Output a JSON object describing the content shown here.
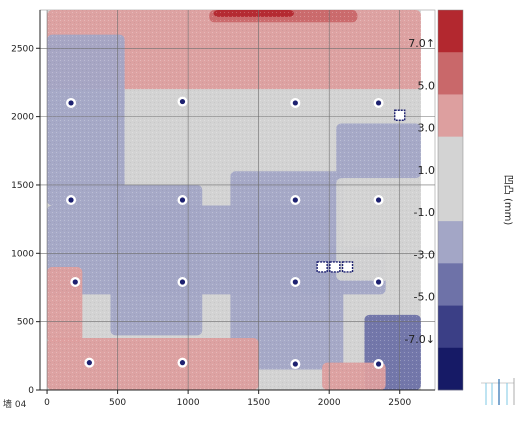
{
  "chart_data": {
    "type": "heatmap",
    "corner_label": "墙 04",
    "x_ticks": [
      "0",
      "500",
      "1000",
      "1500",
      "2000",
      "2500"
    ],
    "y_ticks": [
      "0",
      "500",
      "1000",
      "1500",
      "2000",
      "2500"
    ],
    "xlim": [
      -50,
      2750
    ],
    "ylim": [
      0,
      2780
    ],
    "x_data_extent": [
      0,
      2650
    ],
    "y_data_extent": [
      0,
      2780
    ],
    "grid": true,
    "colorbar": {
      "title": "凹凸 (mm)",
      "labels": [
        "7.0↑",
        "5.0",
        "3.0",
        "1.0",
        "-1.0",
        "-3.0",
        "-5.0",
        "-7.0↓"
      ],
      "colors": [
        "#b3282f",
        "#c9686a",
        "#dd9f9f",
        "#d3d3d3",
        "#d3d3d3",
        "#a3a6c6",
        "#6e72a8",
        "#3b3f86",
        "#161a66"
      ]
    },
    "regions": [
      {
        "level": "3.0",
        "x": [
          0,
          2650
        ],
        "y": [
          2200,
          2780
        ]
      },
      {
        "level": "5.0",
        "x": [
          1150,
          2200
        ],
        "y": [
          2690,
          2780
        ]
      },
      {
        "level": "7.0↑",
        "x": [
          1180,
          1750
        ],
        "y": [
          2730,
          2780
        ]
      },
      {
        "level": "-1.0",
        "x": [
          0,
          2650
        ],
        "y": [
          1400,
          2200
        ]
      },
      {
        "level": "-3.0",
        "x": [
          0,
          550
        ],
        "y": [
          1350,
          2600
        ]
      },
      {
        "level": "-3.0",
        "x": [
          0,
          2000
        ],
        "y": [
          700,
          1350
        ]
      },
      {
        "level": "-3.0",
        "x": [
          450,
          1100
        ],
        "y": [
          400,
          1500
        ]
      },
      {
        "level": "-3.0",
        "x": [
          1300,
          2100
        ],
        "y": [
          150,
          1600
        ]
      },
      {
        "level": "-3.0",
        "x": [
          2050,
          2650
        ],
        "y": [
          1550,
          1950
        ]
      },
      {
        "level": "-3.0",
        "x": [
          1800,
          2400
        ],
        "y": [
          700,
          1050
        ]
      },
      {
        "level": "-5.0",
        "x": [
          2250,
          2650
        ],
        "y": [
          0,
          550
        ]
      },
      {
        "level": "3.0",
        "x": [
          0,
          1500
        ],
        "y": [
          0,
          380
        ]
      },
      {
        "level": "3.0",
        "x": [
          0,
          250
        ],
        "y": [
          350,
          900
        ]
      },
      {
        "level": "3.0",
        "x": [
          1950,
          2400
        ],
        "y": [
          0,
          200
        ]
      },
      {
        "level": "-1.0",
        "x": [
          550,
          1300
        ],
        "y": [
          1500,
          2100
        ]
      },
      {
        "level": "-1.0",
        "x": [
          2050,
          2650
        ],
        "y": [
          800,
          1550
        ]
      }
    ],
    "anchors": [
      {
        "x": 170,
        "y": 2100
      },
      {
        "x": 960,
        "y": 2110
      },
      {
        "x": 1760,
        "y": 2100
      },
      {
        "x": 2350,
        "y": 2100
      },
      {
        "x": 170,
        "y": 1390
      },
      {
        "x": 960,
        "y": 1390
      },
      {
        "x": 1760,
        "y": 1390
      },
      {
        "x": 2350,
        "y": 1390
      },
      {
        "x": 200,
        "y": 790
      },
      {
        "x": 960,
        "y": 790
      },
      {
        "x": 1760,
        "y": 790
      },
      {
        "x": 2350,
        "y": 790
      },
      {
        "x": 300,
        "y": 200
      },
      {
        "x": 960,
        "y": 200
      },
      {
        "x": 1760,
        "y": 190
      },
      {
        "x": 2350,
        "y": 190
      }
    ],
    "markers": [
      {
        "x": 1950,
        "y": 900
      },
      {
        "x": 2040,
        "y": 900
      },
      {
        "x": 2130,
        "y": 900
      },
      {
        "x": 2500,
        "y": 2010
      }
    ]
  }
}
